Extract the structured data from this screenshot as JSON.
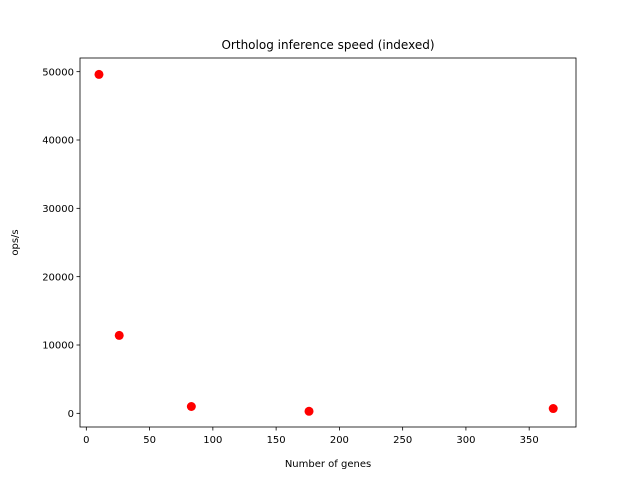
{
  "chart_data": {
    "type": "scatter",
    "title": "Ortholog inference speed (indexed)",
    "xlabel": "Number of genes",
    "ylabel": "ops/s",
    "xlim": [
      -5,
      387
    ],
    "ylim": [
      -2000,
      52000
    ],
    "xticks": [
      0,
      50,
      100,
      150,
      200,
      250,
      300,
      350
    ],
    "yticks": [
      0,
      10000,
      20000,
      30000,
      40000,
      50000
    ],
    "grid": false,
    "marker_color": "#ff0000",
    "points": [
      {
        "x": 10,
        "y": 49600
      },
      {
        "x": 26,
        "y": 11400
      },
      {
        "x": 83,
        "y": 1000
      },
      {
        "x": 176,
        "y": 300
      },
      {
        "x": 369,
        "y": 700
      }
    ]
  }
}
